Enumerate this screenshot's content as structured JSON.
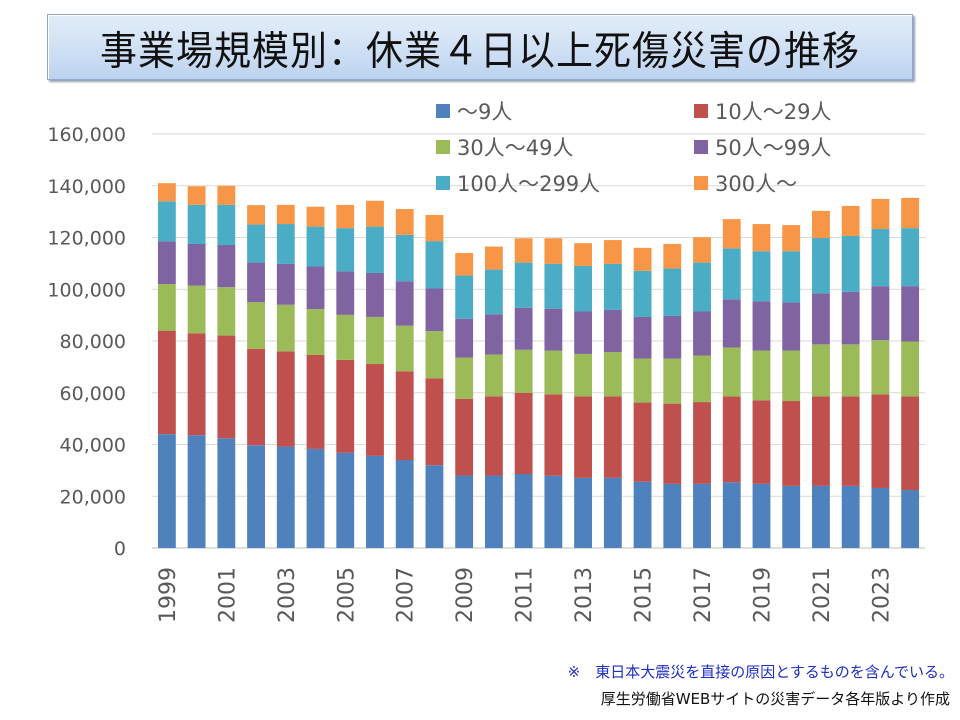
{
  "title": "事業場規模別：休業４日以上死傷災害の推移",
  "notes": {
    "earthquake": "※　東日本大震災を直接の原因とするものを含んでいる。",
    "source": "厚生労働省WEBサイトの災害データ各年版より作成"
  },
  "colors": {
    "text": "#595959",
    "grid": "#d9d9d9",
    "note_blue": "#1f2fc0"
  },
  "chart_data": {
    "type": "bar",
    "stacked": true,
    "title": "事業場規模別：休業４日以上死傷災害の推移",
    "xlabel": "",
    "ylabel": "",
    "ylim": [
      0,
      160000
    ],
    "yticks": [
      0,
      20000,
      40000,
      60000,
      80000,
      100000,
      120000,
      140000,
      160000
    ],
    "ytick_labels": [
      "0",
      "20,000",
      "40,000",
      "60,000",
      "80,000",
      "100,000",
      "120,000",
      "140,000",
      "160,000"
    ],
    "grid": true,
    "legend_position": "top-right",
    "categories": [
      "1999",
      "2000",
      "2001",
      "2002",
      "2003",
      "2004",
      "2005",
      "2006",
      "2007",
      "2008",
      "2009",
      "2010",
      "2011",
      "2012",
      "2013",
      "2014",
      "2015",
      "2016",
      "2017",
      "2018",
      "2019",
      "2020",
      "2021",
      "2022",
      "2023",
      "2024"
    ],
    "xtick_labels": [
      "1999",
      "",
      "2001",
      "",
      "2003",
      "",
      "2005",
      "",
      "2007",
      "",
      "2009",
      "",
      "2011",
      "",
      "2013",
      "",
      "2015",
      "",
      "2017",
      "",
      "2019",
      "",
      "2021",
      "",
      "2023",
      ""
    ],
    "series": [
      {
        "name": "～9人",
        "color": "#4f81bd",
        "values": [
          44000,
          43600,
          42400,
          39700,
          39200,
          38300,
          36800,
          35600,
          34000,
          32000,
          28000,
          28000,
          28600,
          27900,
          27100,
          27100,
          25600,
          24800,
          24800,
          25400,
          24800,
          24000,
          24000,
          24000,
          23200,
          22400
        ]
      },
      {
        "name": "10人～29人",
        "color": "#c0504d",
        "values": [
          40000,
          39400,
          39700,
          37300,
          36800,
          36300,
          35900,
          35500,
          34300,
          33600,
          29700,
          30600,
          31400,
          31500,
          31500,
          31500,
          30600,
          31000,
          31600,
          33200,
          32300,
          32800,
          34600,
          34600,
          36200,
          36200
        ]
      },
      {
        "name": "30人～49人",
        "color": "#9bbb59",
        "values": [
          18000,
          18400,
          18700,
          18000,
          18000,
          17700,
          17400,
          18200,
          17600,
          18200,
          15900,
          16200,
          16600,
          16900,
          16400,
          17100,
          17000,
          17400,
          18000,
          18900,
          19200,
          19500,
          20100,
          20100,
          20900,
          21200
        ]
      },
      {
        "name": "50人～99人",
        "color": "#8064a2",
        "values": [
          16500,
          16100,
          16300,
          15300,
          15800,
          16500,
          16800,
          17000,
          17200,
          16500,
          15000,
          15500,
          16200,
          16200,
          16400,
          16300,
          16100,
          16500,
          17000,
          18600,
          19000,
          18600,
          19700,
          20300,
          20900,
          21400
        ]
      },
      {
        "name": "100人～299人",
        "color": "#4bacc6",
        "values": [
          15500,
          15100,
          15500,
          14700,
          15400,
          15400,
          16700,
          17900,
          17900,
          18300,
          16700,
          17300,
          17500,
          17300,
          17600,
          17800,
          17800,
          18300,
          18900,
          19700,
          19400,
          19800,
          21400,
          21600,
          22100,
          22400
        ]
      },
      {
        "name": "300人～",
        "color": "#f79646",
        "values": [
          7000,
          7200,
          7400,
          7500,
          7400,
          7700,
          9000,
          10000,
          10000,
          10100,
          8700,
          8900,
          9400,
          9900,
          8800,
          9200,
          8900,
          9500,
          9800,
          11300,
          10500,
          10100,
          10500,
          11600,
          11600,
          11700
        ]
      }
    ]
  }
}
